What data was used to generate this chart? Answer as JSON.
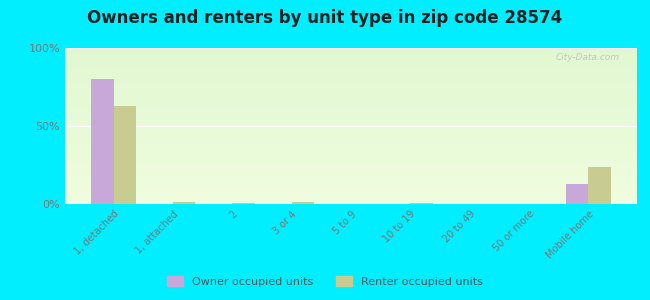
{
  "title": "Owners and renters by unit type in zip code 28574",
  "categories": [
    "1, detached",
    "1, attached",
    "2",
    "3 or 4",
    "5 to 9",
    "10 to 19",
    "20 to 49",
    "50 or more",
    "Mobile home"
  ],
  "owner_values": [
    80,
    0,
    0,
    0,
    0,
    0,
    0,
    0,
    13
  ],
  "renter_values": [
    63,
    1,
    0.5,
    1.5,
    0,
    0.5,
    0,
    0,
    24
  ],
  "owner_color": "#c8a8d8",
  "renter_color": "#c8cc90",
  "bg_outer": "#00eeff",
  "ylim": [
    0,
    100
  ],
  "yticks": [
    0,
    50,
    100
  ],
  "ytick_labels": [
    "0%",
    "50%",
    "100%"
  ],
  "bar_width": 0.38,
  "legend_owner": "Owner occupied units",
  "legend_renter": "Renter occupied units",
  "title_fontsize": 12,
  "watermark": "City-Data.com"
}
